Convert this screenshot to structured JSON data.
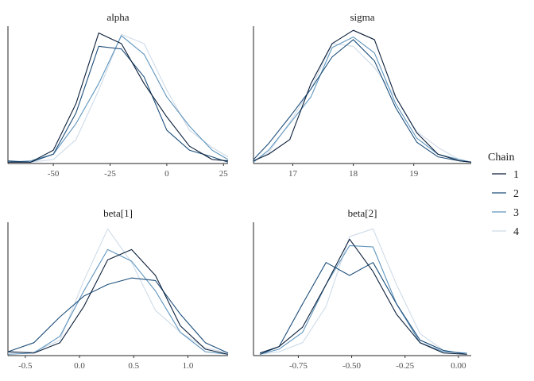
{
  "chart_data": [
    {
      "type": "line",
      "title": "alpha",
      "xlim": [
        -70,
        27
      ],
      "ylim": [
        0,
        1
      ],
      "xticks": [
        -50,
        -25,
        0,
        25
      ],
      "xtick_labels": [
        "-50",
        "-25",
        "0",
        "25"
      ],
      "series": [
        {
          "name": "1",
          "x": [
            -70,
            -60,
            -50,
            -40,
            -30,
            -20,
            -10,
            0,
            10,
            20,
            27
          ],
          "y": [
            0.01,
            0.01,
            0.1,
            0.45,
            0.98,
            0.9,
            0.6,
            0.35,
            0.13,
            0.03,
            0.02
          ]
        },
        {
          "name": "2",
          "x": [
            -70,
            -60,
            -50,
            -40,
            -30,
            -20,
            -10,
            0,
            10,
            20,
            27
          ],
          "y": [
            0.02,
            0.01,
            0.07,
            0.38,
            0.88,
            0.86,
            0.65,
            0.25,
            0.1,
            0.05,
            0.01
          ]
        },
        {
          "name": "3",
          "x": [
            -70,
            -60,
            -50,
            -40,
            -30,
            -20,
            -10,
            0,
            10,
            20,
            27
          ],
          "y": [
            0.01,
            0.02,
            0.07,
            0.3,
            0.6,
            0.96,
            0.82,
            0.5,
            0.28,
            0.1,
            0.03
          ]
        },
        {
          "name": "4",
          "x": [
            -70,
            -60,
            -50,
            -40,
            -30,
            -20,
            -10,
            0,
            10,
            20,
            27
          ],
          "y": [
            0.01,
            0.01,
            0.03,
            0.18,
            0.55,
            0.97,
            0.9,
            0.55,
            0.25,
            0.12,
            0.05
          ]
        }
      ]
    },
    {
      "type": "line",
      "title": "sigma",
      "xlim": [
        16.35,
        19.95
      ],
      "ylim": [
        0,
        1
      ],
      "xticks": [
        17,
        18,
        19
      ],
      "xtick_labels": [
        "17",
        "18",
        "19"
      ],
      "series": [
        {
          "name": "1",
          "x": [
            16.35,
            16.6,
            16.95,
            17.3,
            17.65,
            18.0,
            18.35,
            18.7,
            19.05,
            19.4,
            19.75,
            19.95
          ],
          "y": [
            0.02,
            0.07,
            0.18,
            0.6,
            0.9,
            1.0,
            0.93,
            0.5,
            0.23,
            0.07,
            0.02,
            0.01
          ]
        },
        {
          "name": "2",
          "x": [
            16.35,
            16.6,
            16.95,
            17.3,
            17.65,
            18.0,
            18.35,
            18.7,
            19.05,
            19.4,
            19.75,
            19.95
          ],
          "y": [
            0.03,
            0.15,
            0.35,
            0.56,
            0.8,
            0.93,
            0.77,
            0.42,
            0.16,
            0.05,
            0.02,
            0.01
          ]
        },
        {
          "name": "3",
          "x": [
            16.35,
            16.6,
            16.95,
            17.3,
            17.65,
            18.0,
            18.35,
            18.7,
            19.05,
            19.4,
            19.75,
            19.95
          ],
          "y": [
            0.01,
            0.1,
            0.3,
            0.5,
            0.87,
            0.95,
            0.83,
            0.45,
            0.19,
            0.07,
            0.03,
            0.01
          ]
        },
        {
          "name": "4",
          "x": [
            16.35,
            16.6,
            16.95,
            17.3,
            17.65,
            18.0,
            18.35,
            18.7,
            19.05,
            19.4,
            19.75,
            19.95
          ],
          "y": [
            0.02,
            0.08,
            0.31,
            0.56,
            0.9,
            0.88,
            0.72,
            0.5,
            0.24,
            0.12,
            0.03,
            0.01
          ]
        }
      ]
    },
    {
      "type": "line",
      "title": "beta[1]",
      "xlim": [
        -0.66,
        1.37
      ],
      "ylim": [
        0,
        1
      ],
      "xticks": [
        -0.5,
        0.0,
        0.5,
        1.0
      ],
      "xtick_labels": [
        "-0.5",
        "0.0",
        "0.5",
        "1.0"
      ],
      "series": [
        {
          "name": "1",
          "x": [
            -0.66,
            -0.42,
            -0.18,
            0.04,
            0.26,
            0.48,
            0.7,
            0.93,
            1.16,
            1.37
          ],
          "y": [
            0.03,
            0.02,
            0.1,
            0.38,
            0.74,
            0.82,
            0.62,
            0.23,
            0.05,
            0.01
          ]
        },
        {
          "name": "2",
          "x": [
            -0.66,
            -0.42,
            -0.18,
            0.04,
            0.26,
            0.48,
            0.7,
            0.93,
            1.16,
            1.37
          ],
          "y": [
            0.03,
            0.1,
            0.3,
            0.46,
            0.55,
            0.6,
            0.58,
            0.32,
            0.1,
            0.02
          ]
        },
        {
          "name": "3",
          "x": [
            -0.66,
            -0.42,
            -0.18,
            0.04,
            0.26,
            0.48,
            0.7,
            0.93,
            1.16,
            1.37
          ],
          "y": [
            0.01,
            0.02,
            0.15,
            0.5,
            0.82,
            0.73,
            0.5,
            0.18,
            0.03,
            0.01
          ]
        },
        {
          "name": "4",
          "x": [
            -0.66,
            -0.42,
            -0.18,
            0.04,
            0.26,
            0.48,
            0.7,
            0.93,
            1.16,
            1.37
          ],
          "y": [
            0.02,
            0.03,
            0.12,
            0.58,
            0.98,
            0.72,
            0.35,
            0.18,
            0.06,
            0.02
          ]
        }
      ]
    },
    {
      "type": "line",
      "title": "beta[2]",
      "xlim": [
        -0.96,
        0.06
      ],
      "ylim": [
        0,
        1
      ],
      "xticks": [
        -0.75,
        -0.5,
        -0.25,
        0.0
      ],
      "xtick_labels": [
        "-0.75",
        "-0.50",
        "-0.25",
        "0.00"
      ],
      "series": [
        {
          "name": "1",
          "x": [
            -0.93,
            -0.84,
            -0.73,
            -0.62,
            -0.51,
            -0.4,
            -0.29,
            -0.18,
            -0.07,
            0.04
          ],
          "y": [
            0.02,
            0.07,
            0.22,
            0.55,
            0.9,
            0.65,
            0.32,
            0.1,
            0.02,
            0.01
          ]
        },
        {
          "name": "2",
          "x": [
            -0.93,
            -0.84,
            -0.73,
            -0.62,
            -0.51,
            -0.4,
            -0.29,
            -0.18,
            -0.07,
            0.04
          ],
          "y": [
            0.01,
            0.07,
            0.4,
            0.72,
            0.62,
            0.72,
            0.4,
            0.12,
            0.04,
            0.01
          ]
        },
        {
          "name": "3",
          "x": [
            -0.93,
            -0.84,
            -0.73,
            -0.62,
            -0.51,
            -0.4,
            -0.29,
            -0.18,
            -0.07,
            0.04
          ],
          "y": [
            0.01,
            0.05,
            0.18,
            0.55,
            0.85,
            0.84,
            0.4,
            0.1,
            0.03,
            0.02
          ]
        },
        {
          "name": "4",
          "x": [
            -0.93,
            -0.84,
            -0.73,
            -0.62,
            -0.51,
            -0.4,
            -0.29,
            -0.18,
            -0.07,
            0.04
          ],
          "y": [
            0.01,
            0.03,
            0.1,
            0.38,
            0.92,
            0.98,
            0.55,
            0.17,
            0.04,
            0.01
          ]
        }
      ]
    }
  ],
  "legend": {
    "title": "Chain",
    "items": [
      {
        "label": "1",
        "color": "#0b1f3a"
      },
      {
        "label": "2",
        "color": "#1d4e7a"
      },
      {
        "label": "3",
        "color": "#5f95bd"
      },
      {
        "label": "4",
        "color": "#cfdbe8"
      }
    ]
  }
}
